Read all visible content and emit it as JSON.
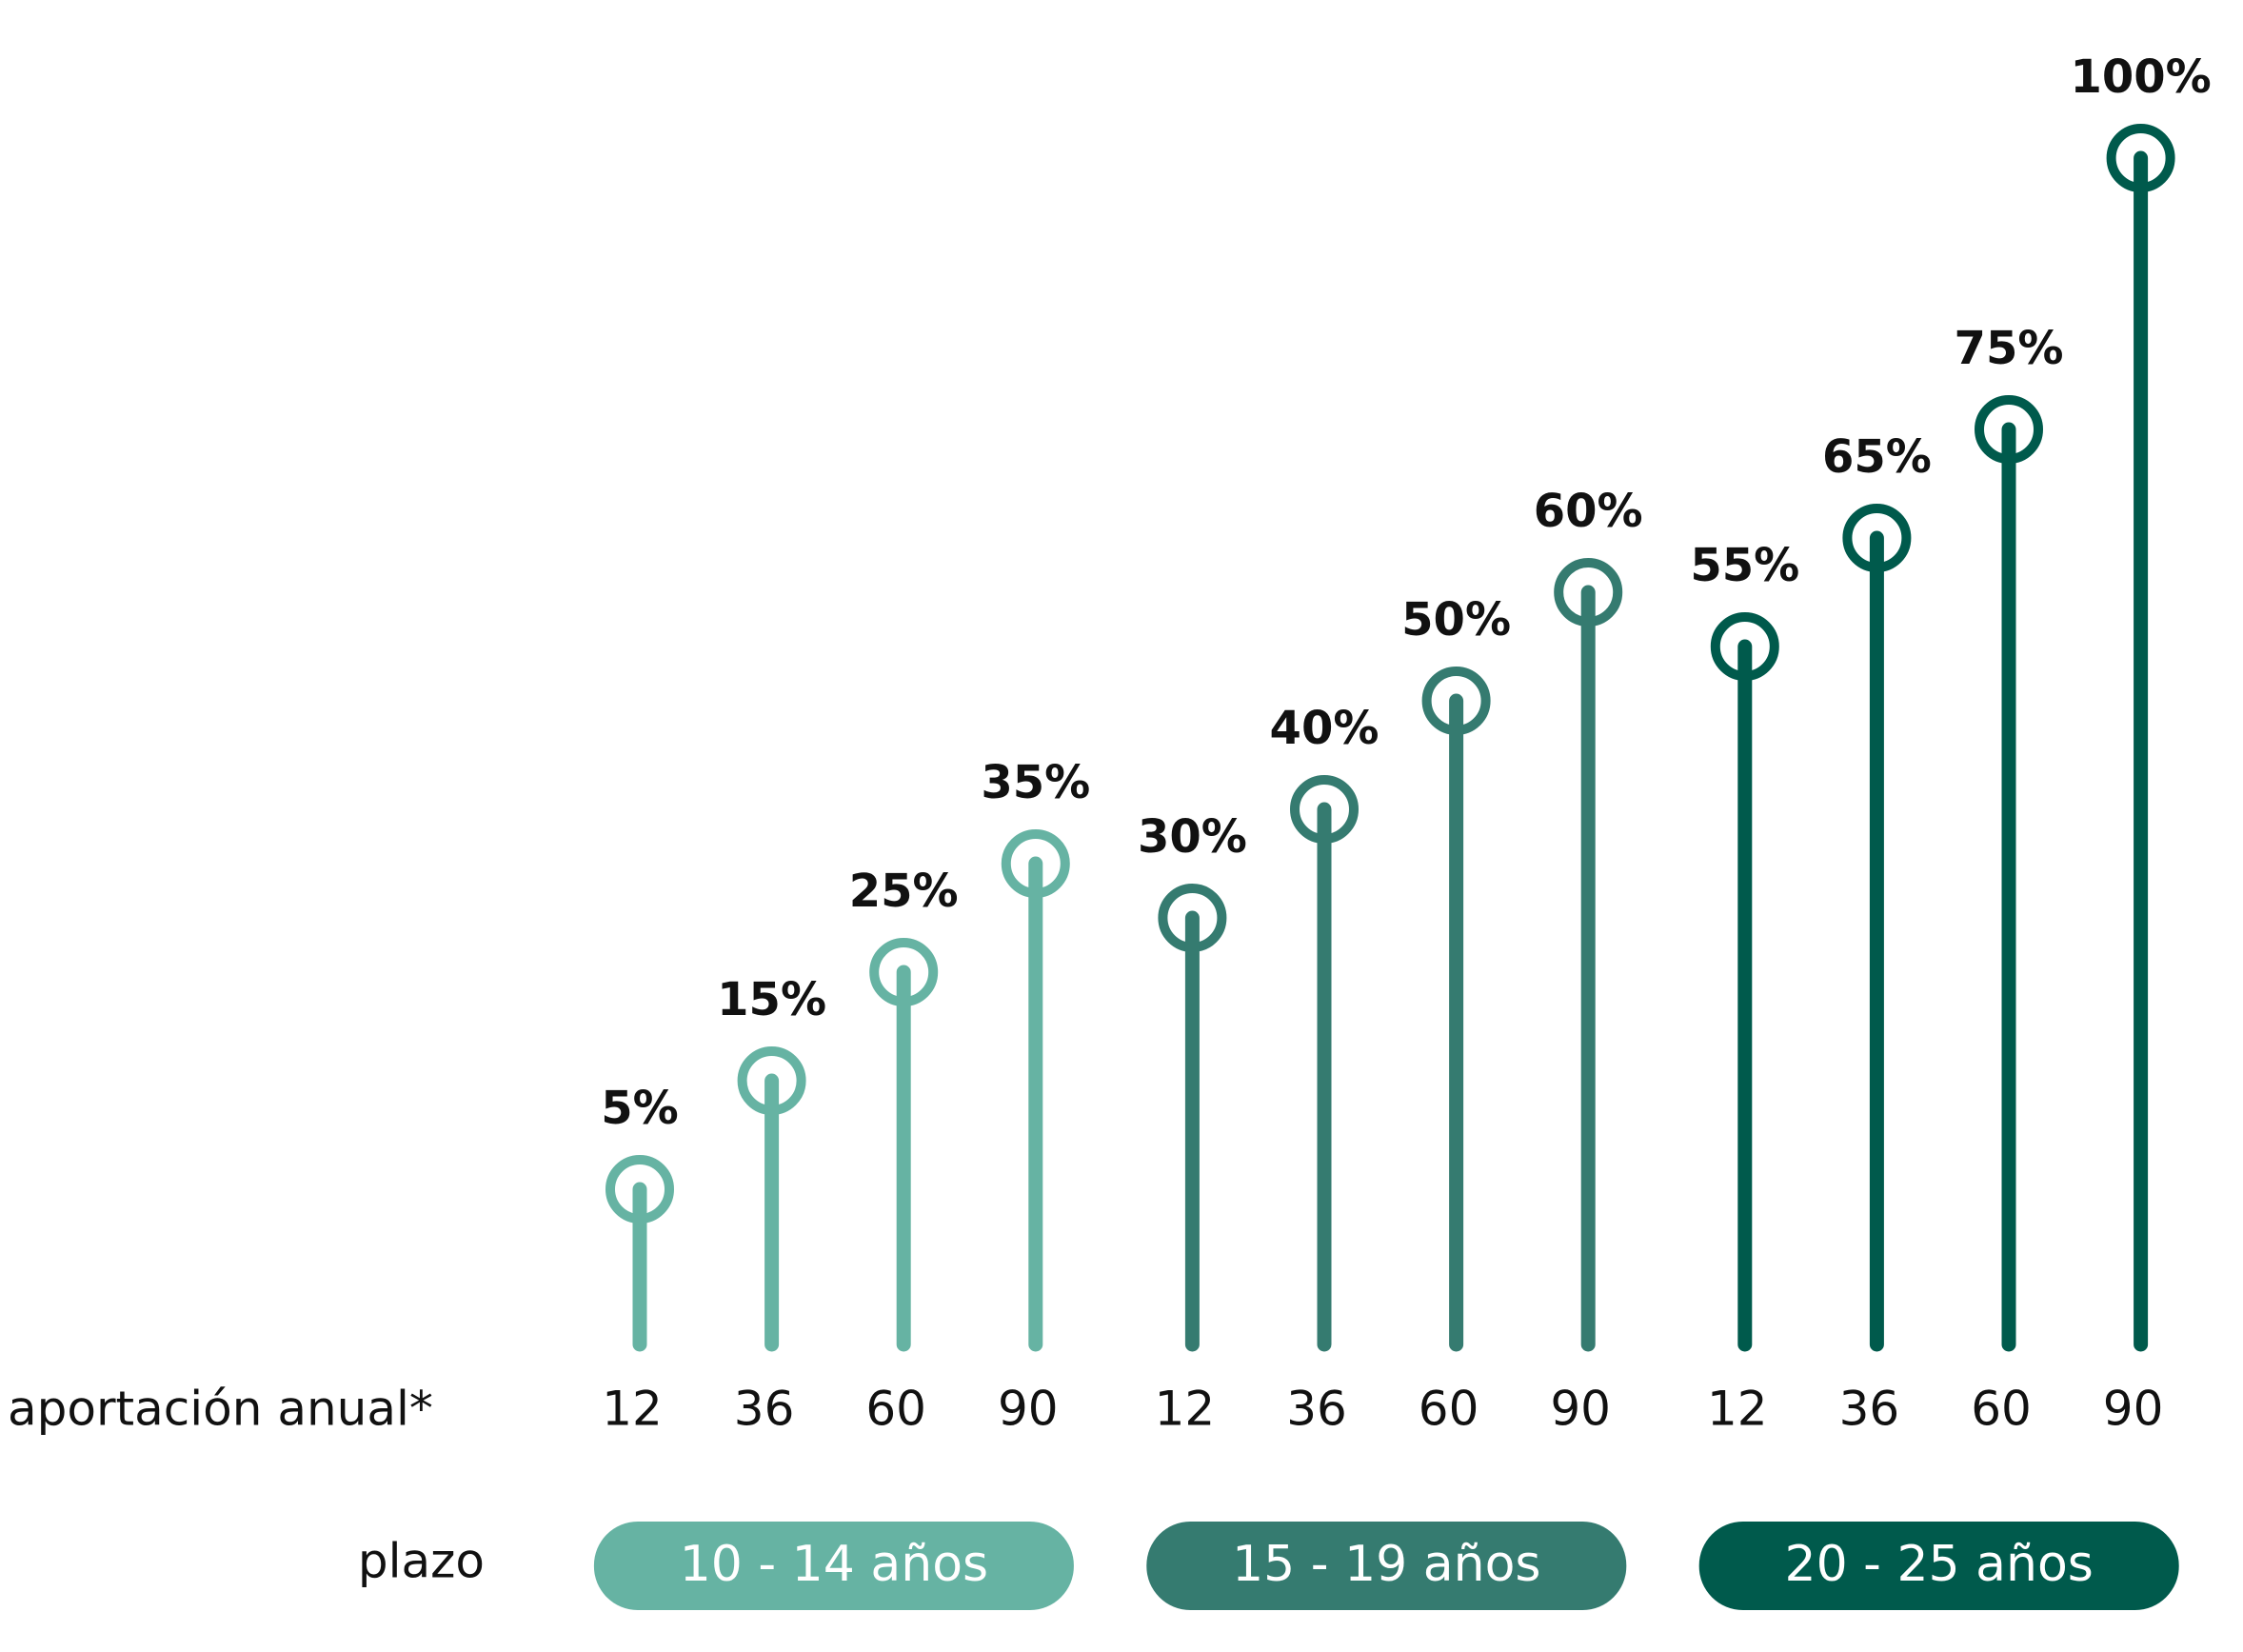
{
  "chart_data": {
    "type": "lollipop",
    "x_label": "aportación anual*",
    "group_label": "plazo",
    "series": [
      {
        "name": "10 - 14 años",
        "color": "#66b3a3",
        "categories": [
          "12",
          "36",
          "60",
          "90"
        ],
        "values": [
          5,
          15,
          25,
          35
        ],
        "value_labels": [
          "5%",
          "15%",
          "25%",
          "35%"
        ]
      },
      {
        "name": "15 - 19 años",
        "color": "#357b70",
        "categories": [
          "12",
          "36",
          "60",
          "90"
        ],
        "values": [
          30,
          40,
          50,
          60
        ],
        "value_labels": [
          "30%",
          "40%",
          "50%",
          "60%"
        ]
      },
      {
        "name": "20 - 25 años",
        "color": "#005a4c",
        "categories": [
          "12",
          "36",
          "60",
          "90"
        ],
        "values": [
          55,
          65,
          75,
          100
        ],
        "value_labels": [
          "55%",
          "65%",
          "75%",
          "100%"
        ]
      }
    ]
  }
}
